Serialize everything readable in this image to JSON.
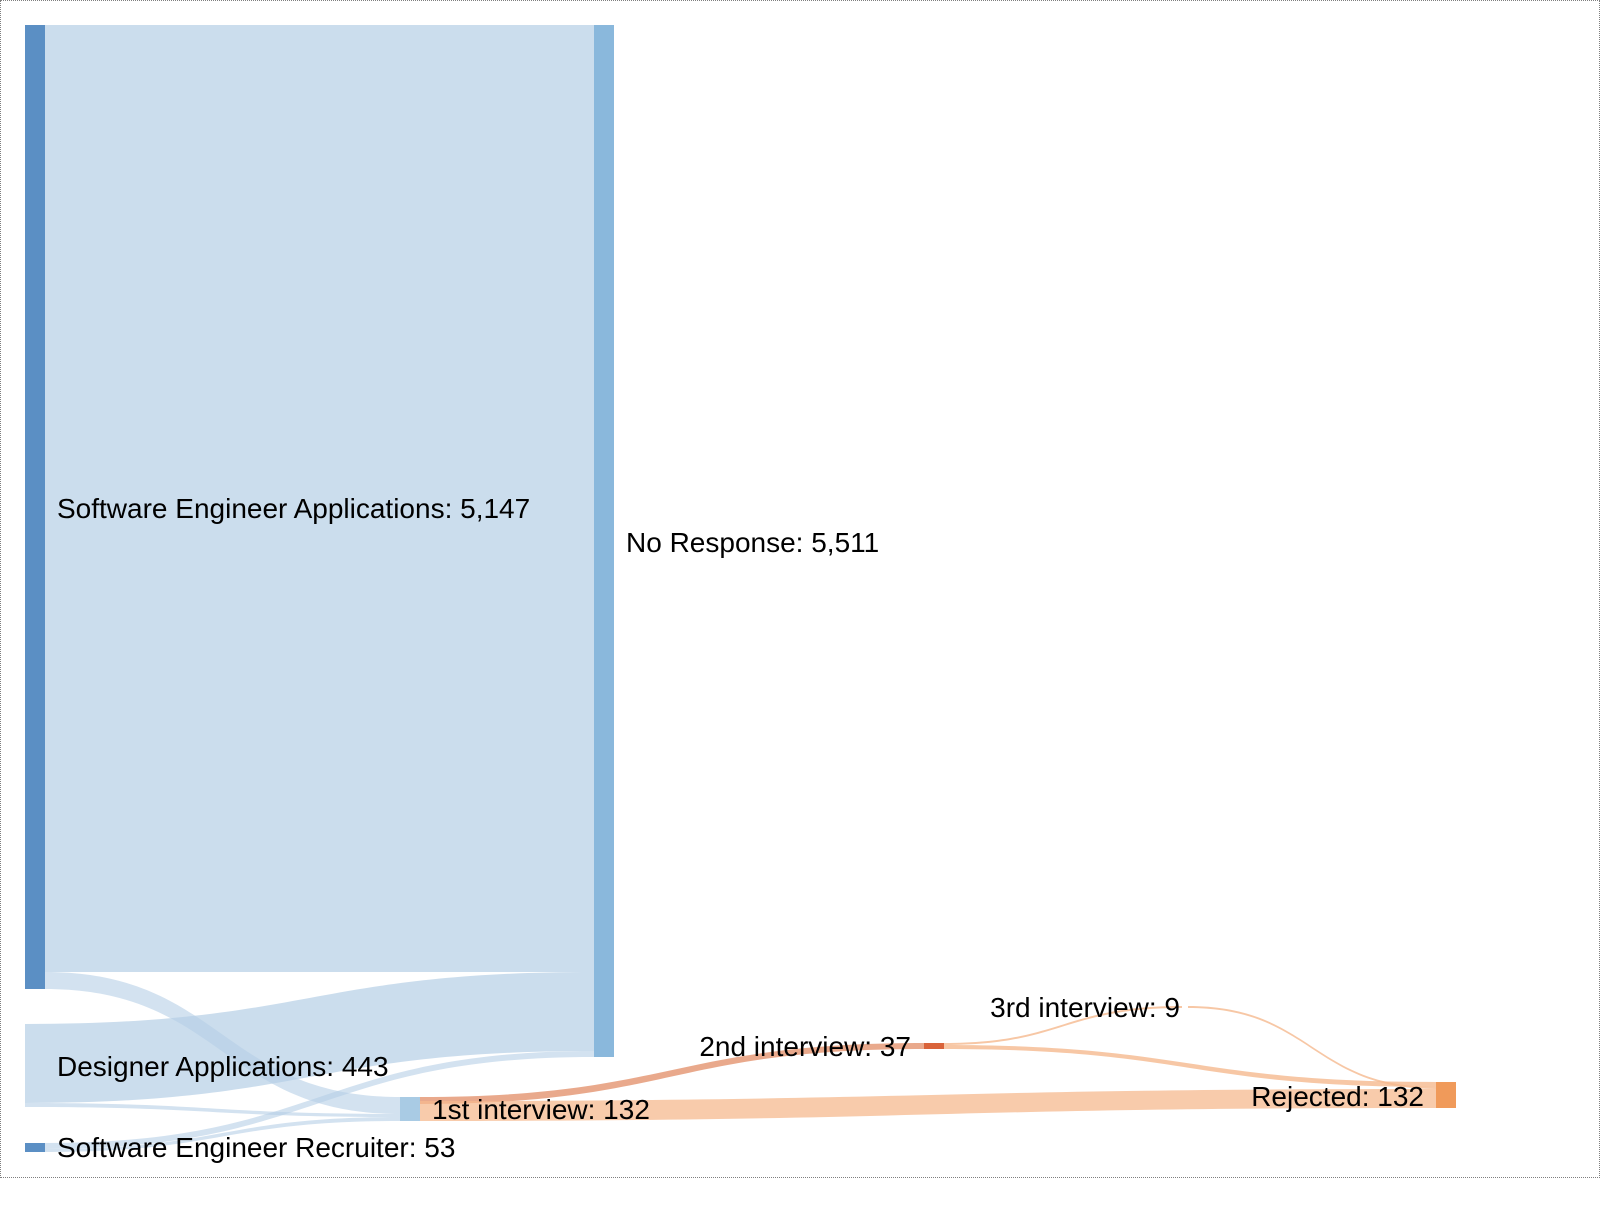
{
  "chart_data": {
    "type": "sankey",
    "nodes": [
      {
        "id": "se_apps",
        "label": "Software Engineer Applications: 5,147",
        "name": "Software Engineer Applications",
        "value": 5147,
        "color": "#5b8fc4"
      },
      {
        "id": "designer_apps",
        "label": "Designer Applications: 443",
        "name": "Designer Applications",
        "value": 443,
        "color": "#cbdceb"
      },
      {
        "id": "se_recruiter",
        "label": "Software Engineer Recruiter: 53",
        "name": "Software Engineer Recruiter",
        "value": 53,
        "color": "#5b8fc4"
      },
      {
        "id": "no_response",
        "label": "No Response: 5,511",
        "name": "No Response",
        "value": 5511,
        "color": "#8ab8dc"
      },
      {
        "id": "first_interview",
        "label": "1st interview: 132",
        "name": "1st interview",
        "value": 132,
        "color": "#a9cbe4"
      },
      {
        "id": "second_interview",
        "label": "2nd interview: 37",
        "name": "2nd interview",
        "value": 37,
        "color": "#d9633a"
      },
      {
        "id": "third_interview",
        "label": "3rd interview: 9",
        "name": "3rd interview",
        "value": 9,
        "color": "#f5b98f"
      },
      {
        "id": "rejected",
        "label": "Rejected: 132",
        "name": "Rejected",
        "value": 132,
        "color": "#f09a5a"
      }
    ],
    "links": [
      {
        "source": "se_apps",
        "target": "no_response",
        "value": 5047
      },
      {
        "source": "se_apps",
        "target": "first_interview",
        "value": 100
      },
      {
        "source": "designer_apps",
        "target": "no_response",
        "value": 423
      },
      {
        "source": "designer_apps",
        "target": "first_interview",
        "value": 20
      },
      {
        "source": "se_recruiter",
        "target": "no_response",
        "value": 41
      },
      {
        "source": "se_recruiter",
        "target": "first_interview",
        "value": 12
      },
      {
        "source": "first_interview",
        "target": "second_interview",
        "value": 37
      },
      {
        "source": "first_interview",
        "target": "rejected",
        "value": 95
      },
      {
        "source": "second_interview",
        "target": "third_interview",
        "value": 9
      },
      {
        "source": "second_interview",
        "target": "rejected",
        "value": 28
      },
      {
        "source": "third_interview",
        "target": "rejected",
        "value": 9
      }
    ],
    "colors": {
      "link_blue": "#b5cfe6",
      "link_orange": "#f5b98f",
      "link_orange_dark": "#e59a78"
    }
  }
}
